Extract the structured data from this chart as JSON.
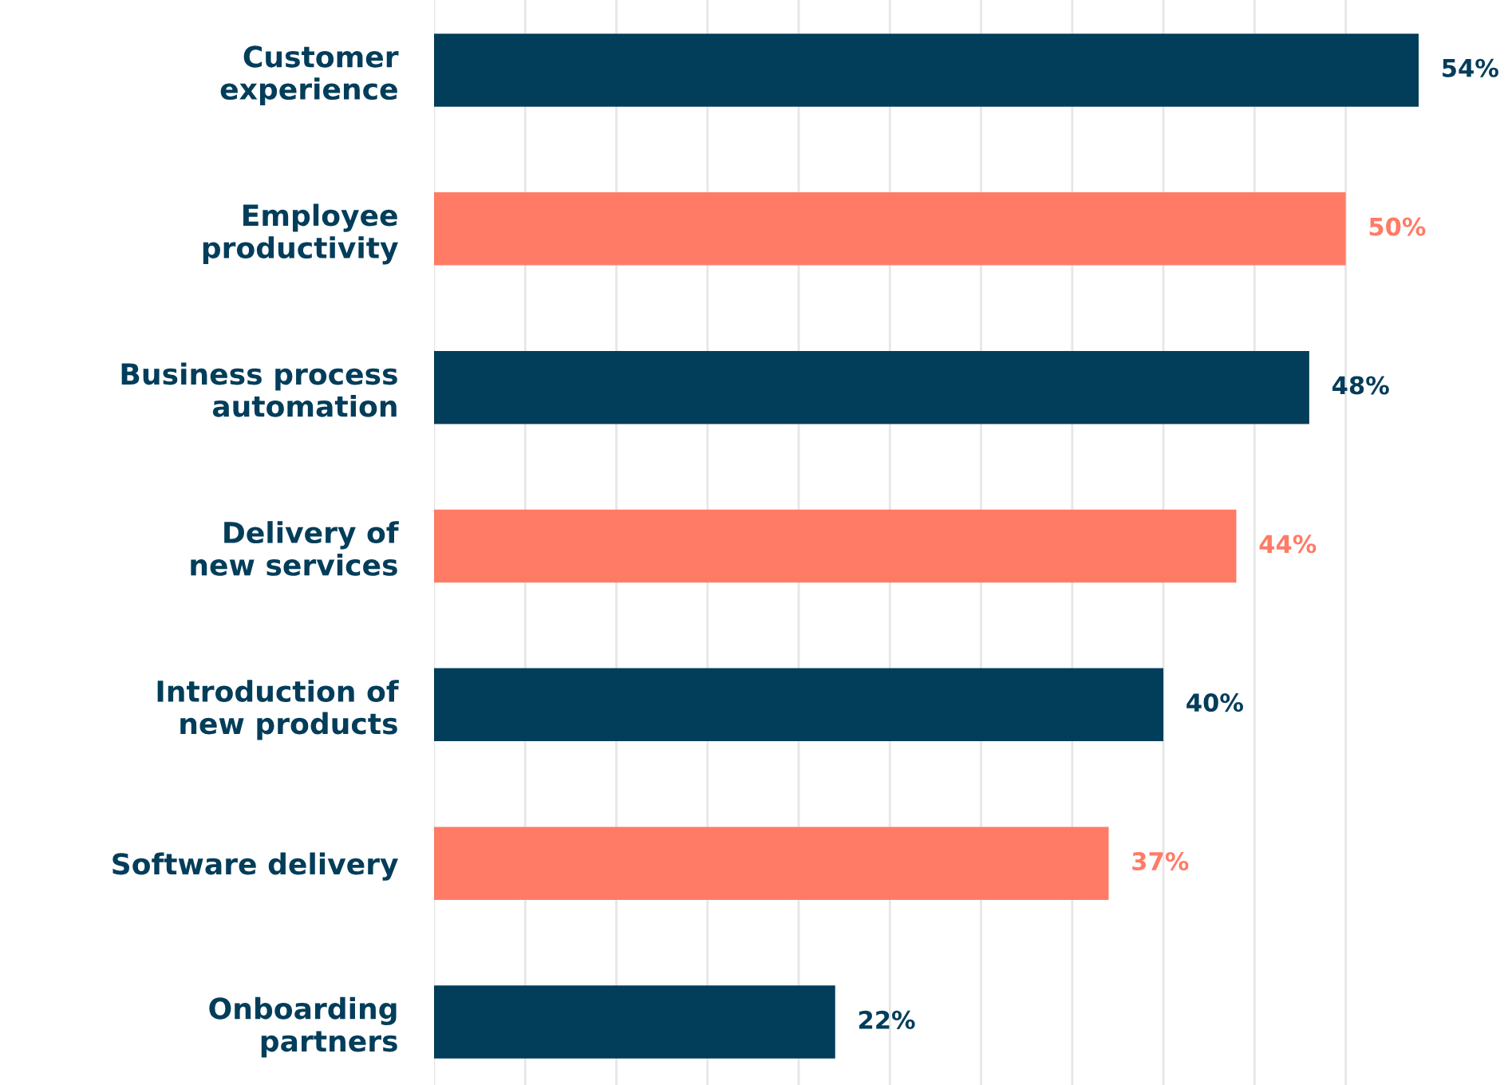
{
  "chart_data": {
    "type": "bar",
    "orientation": "horizontal",
    "categories": [
      "Customer\nexperience",
      "Employee\nproductivity",
      "Business process\nautomation",
      "Delivery of\nnew services",
      "Introduction of\nnew products",
      "Software delivery",
      "Onboarding\npartners"
    ],
    "values": [
      54,
      50,
      48,
      44,
      40,
      37,
      22
    ],
    "colors": [
      "#023d5a",
      "#ff7b66",
      "#023d5a",
      "#ff7b66",
      "#023d5a",
      "#ff7b66",
      "#023d5a"
    ],
    "value_labels": [
      "54%",
      "50%",
      "48%",
      "44%",
      "40%",
      "37%",
      "22%"
    ],
    "grid": "x",
    "tick_labels": "y"
  }
}
